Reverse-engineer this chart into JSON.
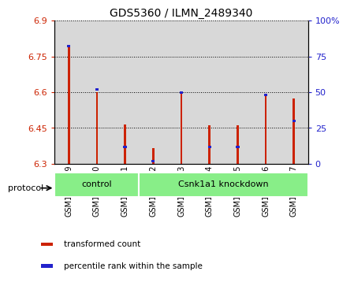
{
  "title": "GDS5360 / ILMN_2489340",
  "samples": [
    "GSM1278259",
    "GSM1278260",
    "GSM1278261",
    "GSM1278262",
    "GSM1278263",
    "GSM1278264",
    "GSM1278265",
    "GSM1278266",
    "GSM1278267"
  ],
  "red_values": [
    6.8,
    6.6,
    6.465,
    6.365,
    6.605,
    6.462,
    6.462,
    6.595,
    6.575
  ],
  "blue_pct": [
    82,
    52,
    12,
    2,
    50,
    12,
    12,
    48,
    30
  ],
  "ymin": 6.3,
  "ymax": 6.9,
  "y2min": 0,
  "y2max": 100,
  "yticks": [
    6.3,
    6.45,
    6.6,
    6.75,
    6.9
  ],
  "y2ticks": [
    0,
    25,
    50,
    75,
    100
  ],
  "ytick_labels": [
    "6.3",
    "6.45",
    "6.6",
    "6.75",
    "6.9"
  ],
  "y2tick_labels": [
    "0",
    "25",
    "50",
    "75",
    "100%"
  ],
  "red_color": "#cc2200",
  "blue_color": "#2222cc",
  "bar_bottom": 6.3,
  "bar_width": 0.08,
  "groups": [
    {
      "label": "control",
      "start": 0,
      "end": 3
    },
    {
      "label": "Csnk1a1 knockdown",
      "start": 3,
      "end": 9
    }
  ],
  "group_color": "#88ee88",
  "protocol_label": "protocol",
  "legend_items": [
    {
      "label": "transformed count",
      "color": "#cc2200"
    },
    {
      "label": "percentile rank within the sample",
      "color": "#2222cc"
    }
  ],
  "col_bg_color": "#d8d8d8",
  "plot_bg_color": "#ffffff",
  "title_fontsize": 10,
  "tick_fontsize": 8,
  "label_fontsize": 7
}
